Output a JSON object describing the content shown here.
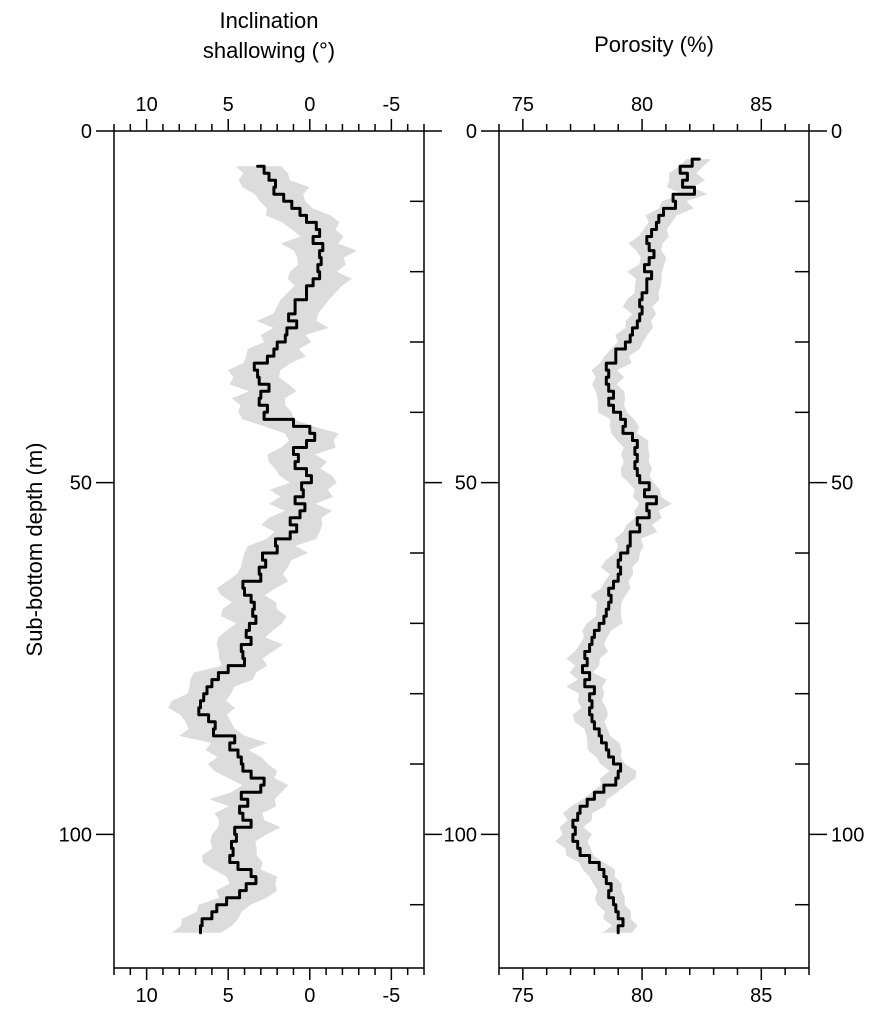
{
  "chart_data": [
    {
      "type": "line",
      "xlabel": [
        "Inclination",
        "shallowing (°)"
      ],
      "ylabel": "Sub-bottom depth (m)",
      "xlim": [
        12,
        -7
      ],
      "ylim": [
        0,
        119
      ],
      "x_ticks": [
        10,
        5,
        0,
        -5
      ],
      "x_tick_labels": [
        "10",
        "5",
        "0",
        "-5"
      ],
      "y_ticks": [
        0,
        50,
        100
      ],
      "y_tick_labels": [
        "0",
        "50",
        "100"
      ],
      "band_halfwidth": 1.5,
      "series": [
        {
          "y": [
            5,
            6,
            7,
            8,
            9,
            10,
            11,
            12,
            13,
            14,
            15,
            16,
            17,
            18,
            19,
            20,
            21,
            22,
            24,
            26,
            27,
            28,
            29,
            30,
            31,
            32,
            33,
            34,
            35,
            36,
            37,
            38,
            39,
            40,
            41,
            42,
            43,
            44,
            45,
            46,
            47,
            48,
            49,
            50,
            51,
            52,
            53,
            54,
            55,
            56,
            57,
            58,
            59,
            60,
            61,
            62,
            63,
            64,
            65,
            66,
            67,
            68,
            69,
            70,
            71,
            72,
            73,
            74,
            75,
            76,
            77,
            78,
            79,
            80,
            81,
            82,
            83,
            84,
            85,
            86,
            87,
            88,
            89,
            90,
            91,
            92,
            93,
            94,
            95,
            96,
            97,
            98,
            99,
            100,
            101,
            102,
            103,
            104,
            105,
            106,
            107,
            108,
            109,
            110,
            111,
            112,
            113,
            114
          ],
          "x": [
            3.2,
            2.8,
            2.5,
            2.1,
            2.2,
            1.6,
            1.1,
            0.6,
            0.2,
            -0.4,
            -0.6,
            -0.2,
            -0.8,
            -0.6,
            -0.7,
            -0.5,
            -0.6,
            -0.2,
            0.2,
            0.9,
            1.3,
            0.8,
            1.4,
            1.5,
            2.0,
            2.2,
            2.6,
            3.4,
            3.2,
            3.1,
            2.5,
            3.0,
            3.1,
            2.6,
            2.8,
            1.0,
            0.0,
            -0.3,
            0.2,
            1.0,
            0.7,
            0.9,
            0.2,
            -0.1,
            0.5,
            0.4,
            0.9,
            0.3,
            0.6,
            1.2,
            0.8,
            1.2,
            2.1,
            2.0,
            2.9,
            2.7,
            3.1,
            3.0,
            4.1,
            4.0,
            3.6,
            3.4,
            3.5,
            3.3,
            3.7,
            3.9,
            3.6,
            4.2,
            4.1,
            4.0,
            5.0,
            5.6,
            6.0,
            6.3,
            6.5,
            6.7,
            6.8,
            6.2,
            5.8,
            5.9,
            4.6,
            4.9,
            4.4,
            4.2,
            4.1,
            3.6,
            2.8,
            3.0,
            4.2,
            3.8,
            4.3,
            4.1,
            3.6,
            4.6,
            4.5,
            4.8,
            4.7,
            4.9,
            4.4,
            3.6,
            3.3,
            3.9,
            4.3,
            5.1,
            5.7,
            6.0,
            6.6,
            6.7
          ]
        }
      ]
    },
    {
      "type": "line",
      "xlabel": "Porosity (%)",
      "ylabel": "",
      "xlim": [
        74,
        87
      ],
      "ylim": [
        0,
        119
      ],
      "x_ticks": [
        75,
        80,
        85
      ],
      "x_tick_labels": [
        "75",
        "80",
        "85"
      ],
      "y_ticks": [
        0,
        50,
        100
      ],
      "y_tick_labels": [
        "0",
        "50",
        "100"
      ],
      "band_halfwidth": 0.55,
      "series": [
        {
          "y": [
            4,
            5,
            6,
            7,
            8,
            9,
            10,
            11,
            12,
            13,
            14,
            15,
            16,
            17,
            18,
            19,
            20,
            21,
            22,
            23,
            24,
            25,
            26,
            27,
            28,
            29,
            30,
            31,
            32,
            33,
            34,
            35,
            36,
            37,
            38,
            39,
            40,
            41,
            42,
            43,
            44,
            45,
            46,
            47,
            48,
            49,
            50,
            51,
            52,
            53,
            54,
            55,
            56,
            57,
            58,
            59,
            60,
            61,
            62,
            63,
            64,
            65,
            66,
            67,
            68,
            69,
            70,
            71,
            72,
            73,
            74,
            75,
            76,
            77,
            78,
            79,
            80,
            81,
            82,
            83,
            84,
            85,
            86,
            87,
            88,
            89,
            90,
            91,
            92,
            93,
            94,
            95,
            96,
            97,
            98,
            99,
            100,
            101,
            102,
            103,
            104,
            105,
            106,
            107,
            108,
            109,
            110,
            111,
            112,
            113,
            114
          ],
          "x": [
            82.4,
            82.1,
            81.6,
            81.9,
            81.7,
            82.2,
            81.3,
            81.4,
            80.9,
            80.7,
            80.6,
            80.4,
            80.2,
            80.3,
            80.5,
            80.3,
            80.1,
            80.4,
            80.2,
            80.2,
            80.0,
            79.9,
            80.0,
            79.9,
            79.8,
            79.6,
            79.5,
            79.3,
            78.9,
            78.9,
            78.5,
            78.6,
            78.5,
            78.6,
            78.8,
            78.6,
            78.8,
            79.1,
            79.3,
            79.2,
            79.6,
            79.8,
            79.7,
            79.8,
            79.7,
            79.8,
            79.9,
            80.3,
            80.1,
            80.6,
            80.2,
            80.3,
            79.8,
            79.9,
            79.5,
            79.5,
            79.4,
            79.1,
            79.0,
            79.1,
            79.0,
            78.8,
            78.6,
            78.7,
            78.6,
            78.5,
            78.4,
            78.2,
            78.0,
            77.9,
            77.8,
            77.6,
            77.7,
            77.5,
            77.8,
            77.6,
            78.0,
            77.8,
            77.9,
            77.8,
            77.9,
            78.0,
            78.2,
            78.3,
            78.5,
            78.6,
            78.8,
            79.1,
            79.0,
            78.9,
            78.4,
            78.0,
            77.7,
            77.4,
            77.3,
            77.1,
            77.2,
            77.1,
            77.3,
            77.4,
            77.8,
            78.2,
            78.4,
            78.5,
            78.7,
            78.6,
            78.8,
            78.9,
            79.0,
            79.2,
            79.0
          ]
        }
      ]
    }
  ]
}
